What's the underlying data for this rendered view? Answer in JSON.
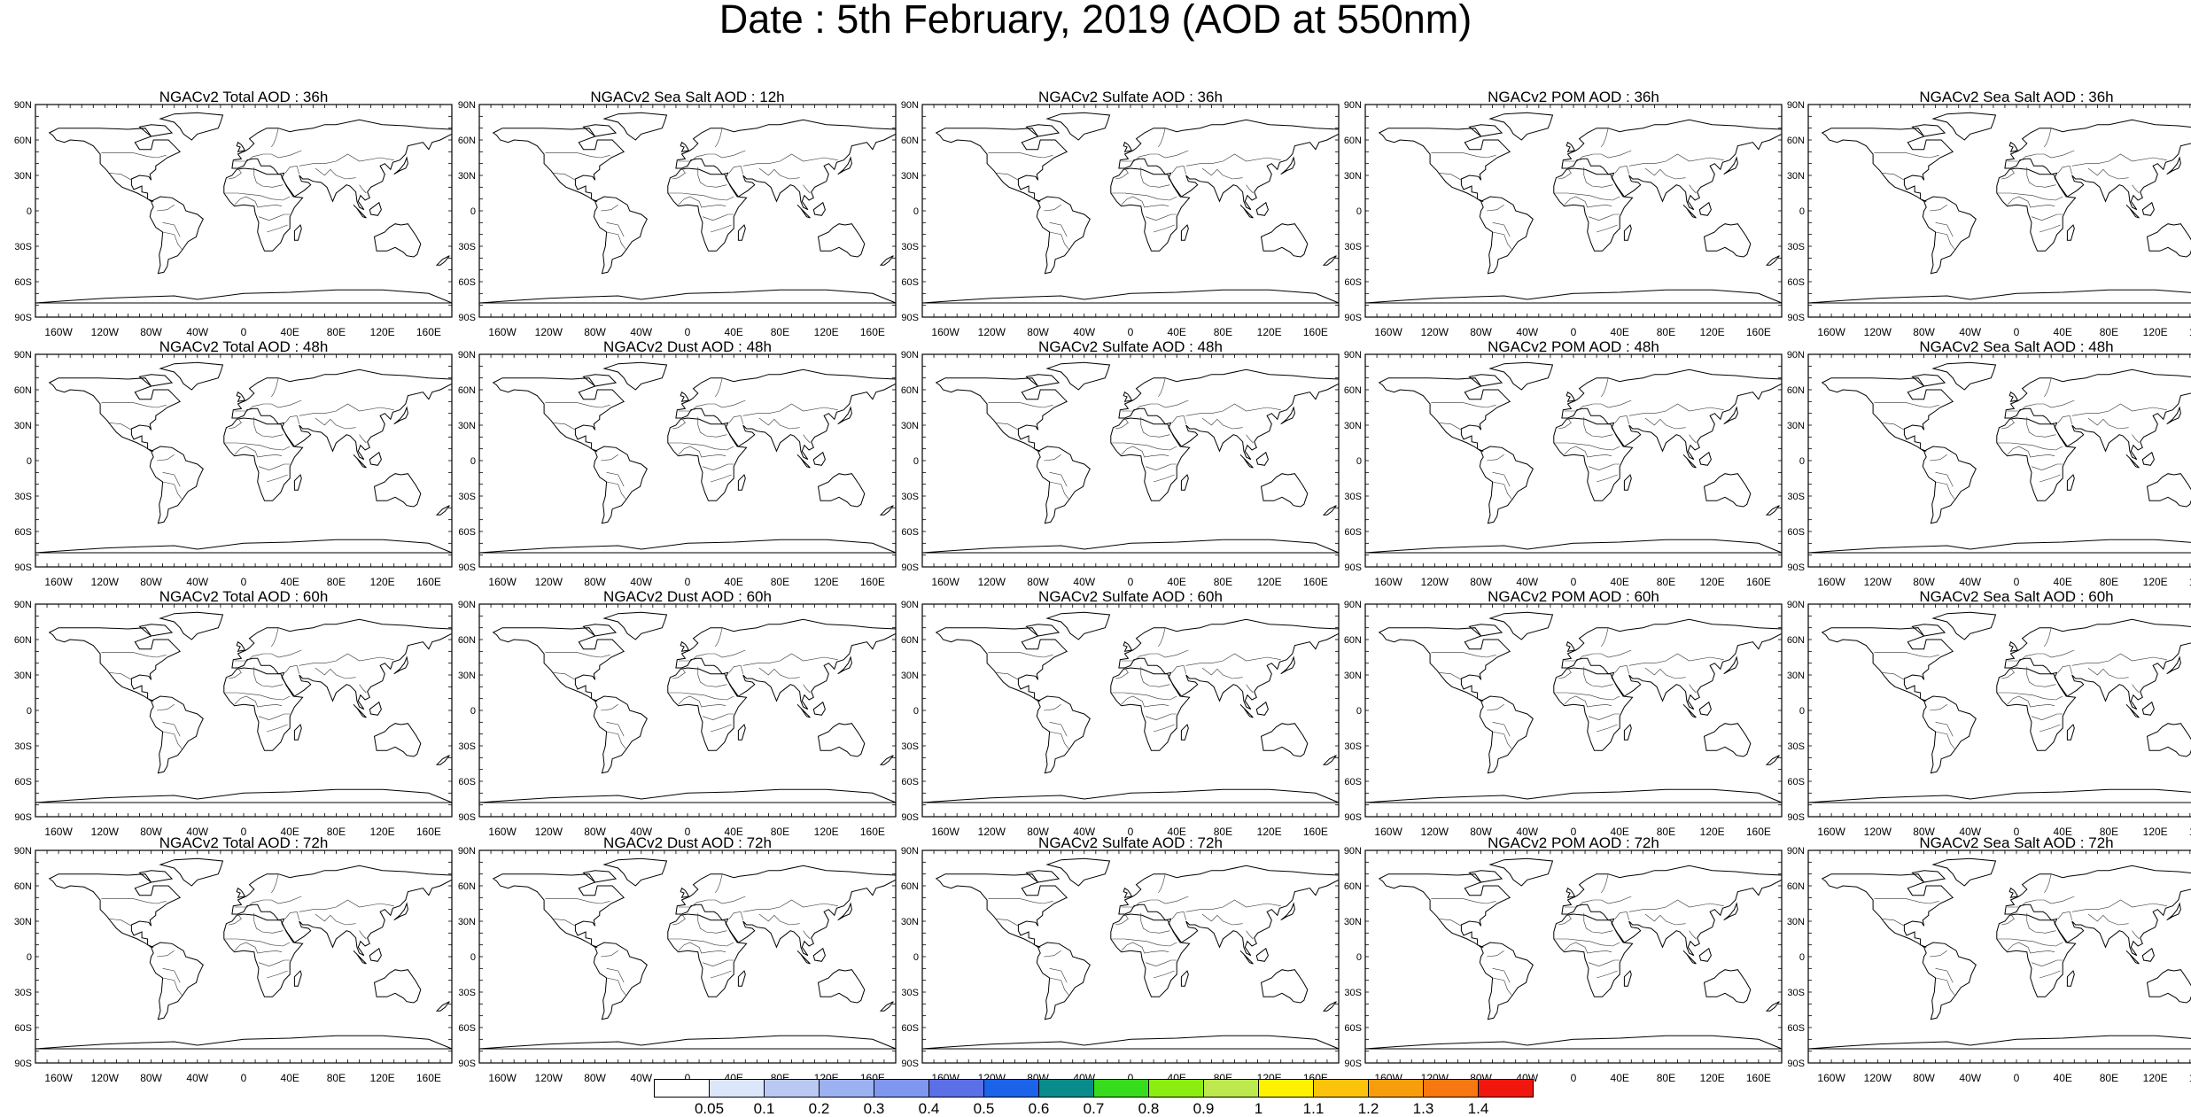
{
  "title": "Date : 5th February, 2019 (AOD at 550nm)",
  "rows": [
    [
      "NGACv2 Total AOD : 36h",
      "NGACv2 Sea Salt  AOD : 12h",
      "NGACv2 Sulfate AOD : 36h",
      "NGACv2 POM AOD : 36h",
      "NGACv2 Sea Salt  AOD : 36h"
    ],
    [
      "NGACv2 Total AOD : 48h",
      "NGACv2 Dust AOD : 48h",
      "NGACv2 Sulfate AOD : 48h",
      "NGACv2 POM AOD : 48h",
      "NGACv2 Sea Salt  AOD : 48h"
    ],
    [
      "NGACv2 Total AOD : 60h",
      "NGACv2 Dust AOD : 60h",
      "NGACv2 Sulfate AOD : 60h",
      "NGACv2 POM AOD : 60h",
      "NGACv2 Sea Salt  AOD : 60h"
    ],
    [
      "NGACv2 Total AOD : 72h",
      "NGACv2 Dust AOD : 72h",
      "NGACv2 Sulfate AOD : 72h",
      "NGACv2 POM AOD : 72h",
      "NGACv2 Sea Salt  AOD : 72h"
    ]
  ],
  "lat_labels": [
    "90N",
    "60N",
    "30N",
    "0",
    "30S",
    "60S",
    "90S"
  ],
  "lon_labels": [
    "160W",
    "120W",
    "80W",
    "40W",
    "0",
    "40E",
    "80E",
    "120E",
    "160E"
  ],
  "colorbar": {
    "labels": [
      "0.05",
      "0.1",
      "0.2",
      "0.3",
      "0.4",
      "0.5",
      "0.6",
      "0.7",
      "0.8",
      "0.9",
      "1",
      "1.1",
      "1.2",
      "1.3",
      "1.4"
    ],
    "colors": [
      "#ffffff",
      "#dce6fb",
      "#b9c9f4",
      "#9cb1f1",
      "#7f97ee",
      "#5b6fe6",
      "#1b63e8",
      "#0a8c8c",
      "#37dc1d",
      "#8cee10",
      "#bde94f",
      "#fff200",
      "#fbc40a",
      "#f99e0b",
      "#f77710",
      "#f2170e"
    ]
  }
}
